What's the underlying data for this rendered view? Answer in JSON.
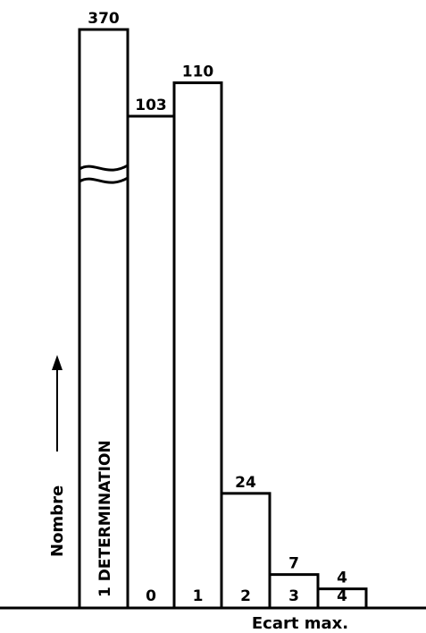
{
  "chart_data": {
    "type": "bar",
    "categories": [
      "1 DETERMINATION",
      "0",
      "1",
      "2",
      "3",
      "4"
    ],
    "values": [
      370,
      103,
      110,
      24,
      7,
      4
    ],
    "value_labels": [
      "370",
      "103",
      "110",
      "24",
      "7",
      "4"
    ],
    "title": "",
    "xlabel": "Ecart max.",
    "ylabel": "Nombre",
    "broken_axis": true,
    "grid": false,
    "legend": "none"
  },
  "colors": {
    "stroke": "#000000",
    "fill": "#ffffff"
  }
}
